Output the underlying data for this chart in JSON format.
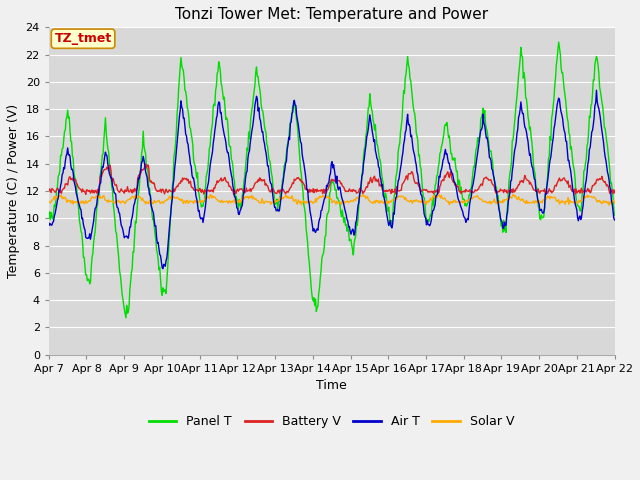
{
  "title": "Tonzi Tower Met: Temperature and Power",
  "xlabel": "Time",
  "ylabel": "Temperature (C) / Power (V)",
  "ylim": [
    0,
    24
  ],
  "yticks": [
    0,
    2,
    4,
    6,
    8,
    10,
    12,
    14,
    16,
    18,
    20,
    22,
    24
  ],
  "xtick_labels": [
    "Apr 7",
    "Apr 8",
    "Apr 9",
    "Apr 10",
    "Apr 11",
    "Apr 12",
    "Apr 13",
    "Apr 14",
    "Apr 15",
    "Apr 16",
    "Apr 17",
    "Apr 18",
    "Apr 19",
    "Apr 20",
    "Apr 21",
    "Apr 22"
  ],
  "annotation_text": "TZ_tmet",
  "annotation_color": "#cc0000",
  "annotation_bg": "#ffffcc",
  "annotation_border": "#cc8800",
  "colors": {
    "panel_t": "#00dd00",
    "battery_v": "#dd2222",
    "air_t": "#0000cc",
    "solar_v": "#ffaa00"
  },
  "legend_labels": [
    "Panel T",
    "Battery V",
    "Air T",
    "Solar V"
  ],
  "plot_bg": "#d8d8d8",
  "fig_bg": "#f0f0f0",
  "grid_color": "#ffffff",
  "title_fontsize": 11,
  "axis_fontsize": 9,
  "tick_fontsize": 8
}
